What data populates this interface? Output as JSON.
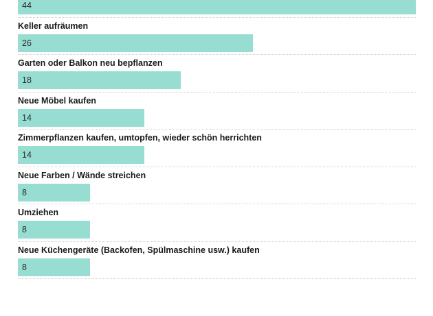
{
  "chart_data": {
    "type": "bar",
    "orientation": "horizontal",
    "categories": [
      "",
      "Keller aufräumen",
      "Garten oder Balkon neu bepflanzen",
      "Neue Möbel kaufen",
      "Zimmerpflanzen kaufen, umtopfen, wieder schön herrichten",
      "Neue Farben / Wände streichen",
      "Umziehen",
      "Neue Küchengeräte (Backofen, Spülmaschine usw.) kaufen",
      ""
    ],
    "values": [
      44,
      26,
      18,
      14,
      14,
      8,
      8,
      8,
      null
    ],
    "xlim": [
      0,
      44
    ],
    "grid": false,
    "bar_color": "#97ddd1"
  }
}
